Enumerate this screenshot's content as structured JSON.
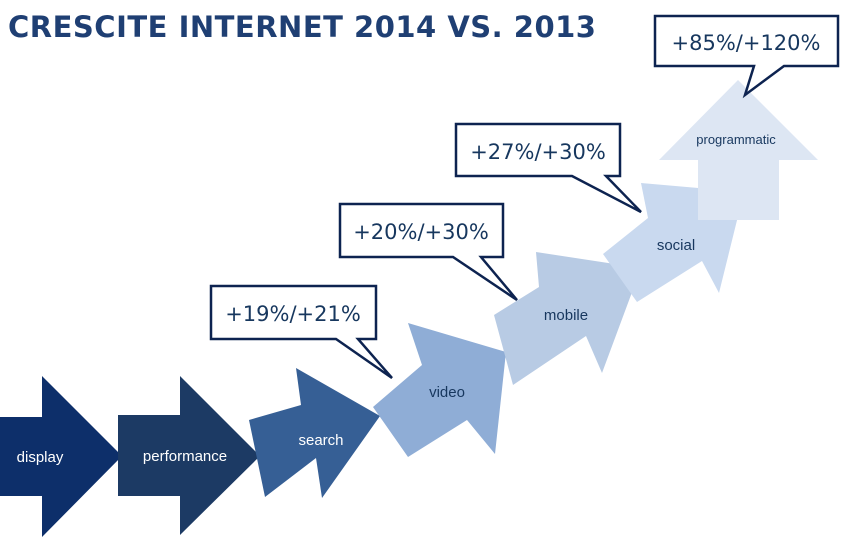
{
  "title": "CRESCITE INTERNET 2014 VS. 2013",
  "arrows": [
    {
      "label": "display",
      "fill": "#0d2f6a",
      "text_color": "#ffffff"
    },
    {
      "label": "performance",
      "fill": "#1c3a64",
      "text_color": "#ffffff"
    },
    {
      "label": "search",
      "fill": "#365f95",
      "text_color": "#ffffff"
    },
    {
      "label": "video",
      "fill": "#8fadd6",
      "text_color": "#17375e"
    },
    {
      "label": "mobile",
      "fill": "#b8cbe4",
      "text_color": "#17375e"
    },
    {
      "label": "social",
      "fill": "#c9d9ef",
      "text_color": "#17375e"
    },
    {
      "label": "programmatic",
      "fill": "#dde6f3",
      "text_color": "#17375e"
    }
  ],
  "callouts": [
    {
      "text": "+19%/+21%",
      "target": "video"
    },
    {
      "text": "+20%/+30%",
      "target": "mobile"
    },
    {
      "text": "+27%/+30%",
      "target": "social"
    },
    {
      "text": "+85%/+120%",
      "target": "programmatic"
    }
  ],
  "colors": {
    "title": "#1f3f73",
    "callout_border": "#0d2350",
    "callout_text": "#17375e"
  }
}
